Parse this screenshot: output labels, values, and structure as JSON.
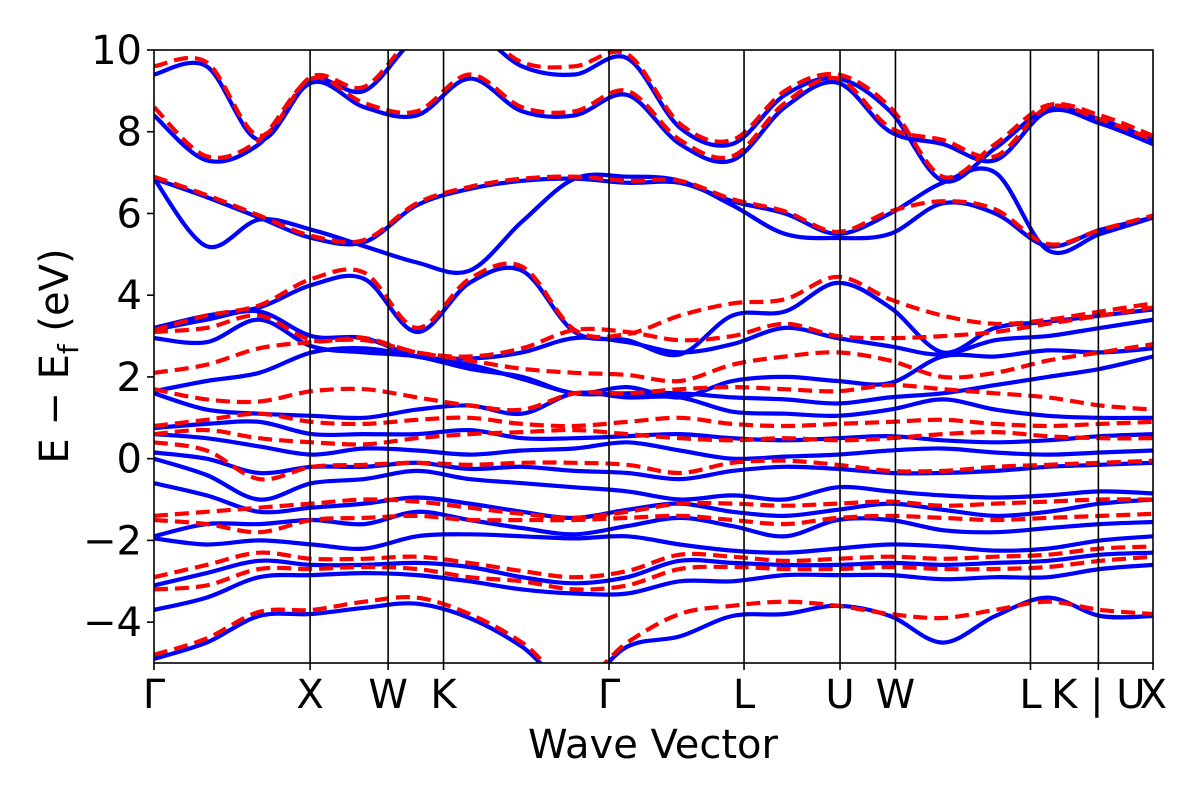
{
  "chart_data": {
    "type": "line",
    "title": "",
    "xlabel": "Wave Vector",
    "ylabel_parts": {
      "main": "E − E",
      "subscript": "f",
      "unit": " (eV)"
    },
    "ylim": [
      -5,
      10
    ],
    "yticks": [
      -4,
      -2,
      0,
      2,
      4,
      6,
      8,
      10
    ],
    "ytick_labels": [
      "−4",
      "−2",
      "0",
      "2",
      "4",
      "6",
      "8",
      "10"
    ],
    "xlim": [
      0,
      6.4
    ],
    "kpath_positions": [
      0,
      1.0,
      1.5,
      1.855,
      2.915,
      3.78,
      4.395,
      4.75,
      5.615,
      6.05,
      6.4
    ],
    "kpath_labels": [
      {
        "x": 0,
        "label": "Γ"
      },
      {
        "x": 1.0,
        "label": "X"
      },
      {
        "x": 1.5,
        "label": "W"
      },
      {
        "x": 1.855,
        "label": "K"
      },
      {
        "x": 2.915,
        "label": "Γ"
      },
      {
        "x": 3.78,
        "label": "L"
      },
      {
        "x": 4.395,
        "label": "U"
      },
      {
        "x": 4.75,
        "label": "W"
      },
      {
        "x": 5.615,
        "label": "L"
      },
      {
        "x": 6.05,
        "label": "K | U"
      },
      {
        "x": 6.4,
        "label": "X"
      }
    ],
    "grid": false,
    "series": [
      {
        "color": "#0000ff",
        "style": "solid",
        "bands": [
          [
            -4.9,
            -4.5,
            -3.85,
            -3.8,
            -3.65,
            -3.55,
            -3.9,
            -4.6,
            -5.6,
            -4.6,
            -4.35,
            -3.85,
            -3.8,
            -3.6,
            -3.85,
            -4.5,
            -3.85,
            -3.4,
            -3.85,
            -3.85
          ],
          [
            -3.7,
            -3.4,
            -2.9,
            -2.85,
            -2.8,
            -2.85,
            -3.0,
            -3.2,
            -3.3,
            -3.3,
            -3.0,
            -3.0,
            -2.85,
            -2.85,
            -2.85,
            -2.95,
            -2.9,
            -2.9,
            -2.7,
            -2.6
          ],
          [
            -3.1,
            -2.8,
            -2.5,
            -2.6,
            -2.6,
            -2.55,
            -2.65,
            -2.9,
            -3.05,
            -2.9,
            -2.5,
            -2.55,
            -2.6,
            -2.6,
            -2.55,
            -2.6,
            -2.55,
            -2.5,
            -2.35,
            -2.3
          ],
          [
            -1.95,
            -2.1,
            -2.0,
            -2.1,
            -2.2,
            -1.9,
            -1.85,
            -1.9,
            -1.95,
            -1.9,
            -2.1,
            -2.25,
            -2.3,
            -2.2,
            -2.1,
            -2.15,
            -2.25,
            -2.2,
            -2.0,
            -1.9
          ],
          [
            -1.9,
            -1.6,
            -1.6,
            -1.5,
            -1.6,
            -1.3,
            -1.5,
            -1.7,
            -1.85,
            -1.65,
            -1.45,
            -1.65,
            -1.9,
            -1.5,
            -1.5,
            -1.75,
            -1.8,
            -1.7,
            -1.6,
            -1.55
          ],
          [
            -0.6,
            -0.9,
            -1.3,
            -1.2,
            -1.1,
            -0.95,
            -1.1,
            -1.3,
            -1.45,
            -1.25,
            -1.1,
            -1.3,
            -1.4,
            -1.25,
            -1.1,
            -1.25,
            -1.4,
            -1.3,
            -1.1,
            -1.0
          ],
          [
            0.0,
            -0.4,
            -1.0,
            -0.6,
            -0.5,
            -0.3,
            -0.5,
            -0.6,
            -0.7,
            -0.8,
            -1.0,
            -0.9,
            -1.0,
            -0.7,
            -0.8,
            -0.9,
            -0.95,
            -0.9,
            -0.8,
            -0.85
          ],
          [
            0.15,
            0.0,
            -0.35,
            -0.2,
            -0.2,
            -0.1,
            -0.25,
            -0.2,
            -0.3,
            -0.35,
            -0.5,
            -0.3,
            -0.2,
            -0.25,
            -0.35,
            -0.35,
            -0.3,
            -0.2,
            -0.15,
            -0.1
          ],
          [
            0.6,
            0.5,
            0.3,
            0.1,
            0.25,
            0.2,
            0.1,
            0.2,
            0.25,
            0.4,
            0.2,
            0.0,
            0.05,
            0.1,
            0.2,
            0.25,
            0.15,
            0.1,
            0.15,
            0.2
          ],
          [
            0.75,
            0.85,
            0.9,
            0.6,
            0.6,
            0.6,
            0.7,
            0.5,
            0.5,
            0.55,
            0.6,
            0.5,
            0.45,
            0.5,
            0.55,
            0.45,
            0.4,
            0.45,
            0.55,
            0.6
          ],
          [
            1.6,
            1.2,
            1.1,
            1.05,
            1.0,
            1.2,
            1.3,
            1.1,
            1.6,
            1.5,
            1.5,
            1.15,
            1.1,
            1.05,
            1.2,
            1.45,
            1.2,
            1.05,
            1.0,
            1.0
          ],
          [
            1.65,
            1.9,
            2.1,
            2.6,
            2.7,
            2.5,
            2.3,
            1.95,
            1.6,
            1.6,
            1.6,
            1.5,
            1.45,
            1.35,
            1.5,
            1.6,
            1.8,
            2.0,
            2.2,
            2.5
          ],
          [
            2.95,
            2.85,
            3.4,
            2.75,
            2.6,
            2.5,
            2.2,
            2.0,
            1.6,
            1.75,
            1.5,
            1.9,
            2.0,
            1.9,
            1.85,
            2.5,
            2.5,
            2.65,
            2.6,
            2.7
          ],
          [
            3.15,
            3.4,
            3.6,
            3.0,
            2.95,
            2.5,
            2.45,
            2.6,
            2.95,
            2.85,
            2.6,
            2.8,
            3.2,
            2.95,
            2.75,
            2.55,
            2.9,
            3.0,
            3.2,
            3.4
          ],
          [
            3.2,
            3.5,
            3.7,
            4.25,
            4.4,
            3.1,
            4.3,
            4.6,
            3.1,
            2.9,
            2.55,
            3.5,
            3.6,
            4.3,
            3.7,
            2.6,
            3.2,
            3.35,
            3.5,
            3.65
          ],
          [
            6.85,
            6.4,
            5.9,
            5.4,
            5.3,
            6.2,
            6.6,
            6.8,
            6.85,
            6.75,
            6.75,
            6.3,
            6.0,
            5.5,
            6.0,
            6.75,
            7.0,
            5.1,
            5.5,
            5.9
          ],
          [
            6.85,
            5.2,
            5.85,
            5.6,
            5.2,
            4.8,
            4.6,
            5.8,
            6.85,
            6.9,
            6.8,
            6.2,
            5.5,
            5.4,
            5.5,
            6.25,
            6.0,
            5.2,
            5.6,
            5.9
          ],
          [
            8.4,
            7.3,
            7.7,
            9.2,
            8.6,
            8.4,
            9.3,
            8.5,
            8.4,
            8.9,
            7.7,
            7.3,
            8.6,
            9.2,
            8.0,
            7.7,
            7.3,
            8.5,
            8.2,
            7.7
          ],
          [
            9.4,
            9.6,
            7.8,
            9.25,
            9.0,
            10.3,
            10.5,
            9.6,
            9.4,
            9.8,
            8.1,
            7.7,
            8.9,
            9.3,
            8.5,
            6.8,
            7.6,
            8.55,
            8.3,
            7.8
          ]
        ]
      },
      {
        "color": "#ff0000",
        "style": "dashed",
        "bands": [
          [
            -4.8,
            -4.4,
            -3.75,
            -3.7,
            -3.5,
            -3.4,
            -3.8,
            -4.5,
            -5.5,
            -4.5,
            -3.8,
            -3.6,
            -3.5,
            -3.6,
            -3.8,
            -3.9,
            -3.7,
            -3.5,
            -3.7,
            -3.8
          ],
          [
            -3.2,
            -3.1,
            -2.7,
            -2.7,
            -2.65,
            -2.7,
            -2.9,
            -3.0,
            -3.2,
            -3.1,
            -2.7,
            -2.65,
            -2.7,
            -2.7,
            -2.65,
            -2.7,
            -2.7,
            -2.65,
            -2.5,
            -2.4
          ],
          [
            -2.9,
            -2.6,
            -2.3,
            -2.45,
            -2.45,
            -2.4,
            -2.55,
            -2.75,
            -2.9,
            -2.75,
            -2.35,
            -2.4,
            -2.5,
            -2.45,
            -2.4,
            -2.45,
            -2.4,
            -2.35,
            -2.2,
            -2.15
          ],
          [
            -1.5,
            -1.6,
            -1.8,
            -1.5,
            -1.45,
            -1.4,
            -1.5,
            -1.5,
            -1.5,
            -1.45,
            -1.4,
            -1.5,
            -1.6,
            -1.45,
            -1.4,
            -1.45,
            -1.5,
            -1.45,
            -1.4,
            -1.35
          ],
          [
            -1.4,
            -1.3,
            -1.2,
            -1.1,
            -1.0,
            -1.05,
            -1.2,
            -1.35,
            -1.45,
            -1.3,
            -1.1,
            -1.1,
            -1.15,
            -1.1,
            -1.05,
            -1.15,
            -1.1,
            -1.05,
            -1.0,
            -1.0
          ],
          [
            0.4,
            0.2,
            -0.5,
            -0.2,
            -0.15,
            -0.1,
            -0.15,
            -0.1,
            -0.1,
            -0.15,
            -0.35,
            -0.1,
            -0.05,
            -0.15,
            -0.3,
            -0.3,
            -0.2,
            -0.15,
            -0.1,
            -0.05
          ],
          [
            0.6,
            0.7,
            0.5,
            0.4,
            0.35,
            0.5,
            0.6,
            0.65,
            0.7,
            0.6,
            0.5,
            0.45,
            0.5,
            0.45,
            0.5,
            0.6,
            0.65,
            0.55,
            0.5,
            0.5
          ],
          [
            0.8,
            0.95,
            1.1,
            0.9,
            0.85,
            0.95,
            1.0,
            0.85,
            0.8,
            0.9,
            1.0,
            0.85,
            0.8,
            0.85,
            0.9,
            0.95,
            0.85,
            0.8,
            0.85,
            0.9
          ],
          [
            1.7,
            1.45,
            1.4,
            1.65,
            1.7,
            1.5,
            1.3,
            1.2,
            1.6,
            1.6,
            1.7,
            1.75,
            1.7,
            1.65,
            1.8,
            1.7,
            1.6,
            1.5,
            1.3,
            1.2
          ],
          [
            2.1,
            2.3,
            2.7,
            2.85,
            2.9,
            2.6,
            2.4,
            2.2,
            2.1,
            2.05,
            1.9,
            2.3,
            2.5,
            2.6,
            2.4,
            2.0,
            2.1,
            2.4,
            2.6,
            2.8
          ],
          [
            3.1,
            3.2,
            3.5,
            2.9,
            2.95,
            2.6,
            2.5,
            2.7,
            3.15,
            3.1,
            2.9,
            3.0,
            3.3,
            3.0,
            2.95,
            3.0,
            3.1,
            3.3,
            3.5,
            3.7
          ],
          [
            3.15,
            3.5,
            3.75,
            4.4,
            4.55,
            3.2,
            4.4,
            4.7,
            3.15,
            3.05,
            3.5,
            3.8,
            3.9,
            4.45,
            3.9,
            3.5,
            3.3,
            3.4,
            3.6,
            3.8
          ],
          [
            6.9,
            6.45,
            5.95,
            5.45,
            5.35,
            6.25,
            6.65,
            6.85,
            6.9,
            6.8,
            6.8,
            6.35,
            6.05,
            5.55,
            6.05,
            6.3,
            6.1,
            5.25,
            5.6,
            5.95
          ],
          [
            8.6,
            7.4,
            7.8,
            9.3,
            8.7,
            8.5,
            9.4,
            8.6,
            8.5,
            9.0,
            7.8,
            7.4,
            8.7,
            9.3,
            8.1,
            7.8,
            7.4,
            8.6,
            8.3,
            7.8
          ],
          [
            9.6,
            9.7,
            7.9,
            9.35,
            9.1,
            10.4,
            10.6,
            9.7,
            9.6,
            9.9,
            8.2,
            7.8,
            9.0,
            9.4,
            8.6,
            6.9,
            7.7,
            8.65,
            8.4,
            7.9
          ]
        ]
      }
    ]
  }
}
